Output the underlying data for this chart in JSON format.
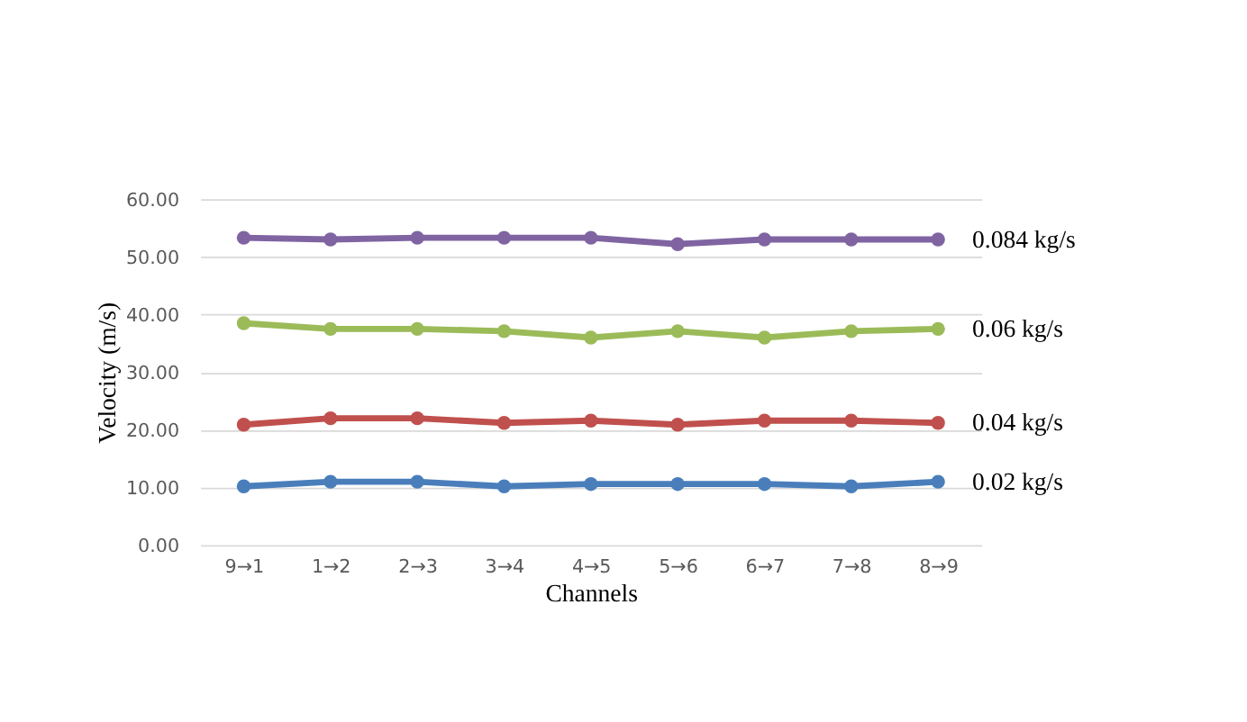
{
  "chart_data": {
    "type": "line",
    "xlabel": "Channels",
    "ylabel": "Velocity (m/s)",
    "categories": [
      "9→1",
      "1→2",
      "2→3",
      "3→4",
      "4→5",
      "5→6",
      "6→7",
      "7→8",
      "8→9"
    ],
    "series": [
      {
        "name": "0.02 kg/s",
        "color": "#4a7ebb",
        "values": [
          10.2,
          11.0,
          11.0,
          10.2,
          10.6,
          10.6,
          10.6,
          10.2,
          11.0
        ]
      },
      {
        "name": "0.04 kg/s",
        "color": "#c0504d",
        "values": [
          20.9,
          22.0,
          22.0,
          21.2,
          21.6,
          20.9,
          21.6,
          21.6,
          21.2
        ]
      },
      {
        "name": "0.06 kg/s",
        "color": "#9bbb59",
        "values": [
          38.5,
          37.5,
          37.5,
          37.1,
          36.0,
          37.1,
          36.0,
          37.1,
          37.5
        ]
      },
      {
        "name": "0.084 kg/s",
        "color": "#8064a2",
        "values": [
          53.3,
          53.0,
          53.3,
          53.3,
          53.3,
          52.2,
          53.0,
          53.0,
          53.0
        ]
      }
    ],
    "ylim": [
      0,
      60
    ],
    "yticks": [
      {
        "value": 0,
        "label": "0.00"
      },
      {
        "value": 10,
        "label": "10.00"
      },
      {
        "value": 20,
        "label": "20.00"
      },
      {
        "value": 30,
        "label": "30.00"
      },
      {
        "value": 40,
        "label": "40.00"
      },
      {
        "value": 50,
        "label": "50.00"
      },
      {
        "value": 60,
        "label": "60.00"
      }
    ],
    "grid": "y",
    "legend": false,
    "marker": "circle",
    "line_style": "solid"
  }
}
